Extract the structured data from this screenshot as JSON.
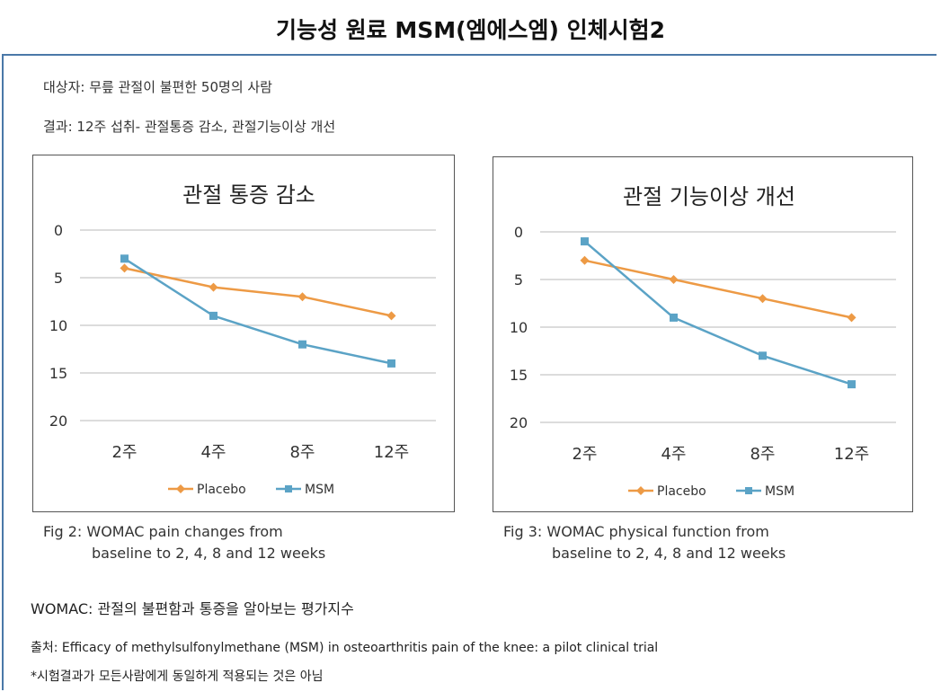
{
  "page": {
    "title": "기능성 원료 MSM(엠에스엠) 인체시험2",
    "subject_line": "대상자: 무릎 관절이 불편한 50명의 사람",
    "result_line": "결과: 12주 섭취- 관절통증 감소, 관절기능이상 개선",
    "womac_note": "WOMAC: 관절의 불편함과 통증을 알아보는 평가지수",
    "source_line": "출처: Efficacy of methylsulfonylmethane (MSM) in osteoarthritis pain of the knee: a pilot clinical trial",
    "disclaimer": "*시험결과가 모든사람에게 동일하게 적용되는 것은 아님"
  },
  "captions": [
    {
      "line1": "Fig 2: WOMAC pain changes from",
      "line2": "baseline to 2, 4, 8 and 12 weeks"
    },
    {
      "line1": "Fig 3: WOMAC physical function from",
      "line2": "baseline to 2, 4, 8 and 12 weeks"
    }
  ],
  "chart_data": [
    {
      "type": "line",
      "title": "관절 통증 감소",
      "categories": [
        "2주",
        "4주",
        "8주",
        "12주"
      ],
      "y_ticks": [
        "0",
        "5",
        "10",
        "15",
        "20"
      ],
      "ylim": [
        0,
        20
      ],
      "y_inverted": true,
      "grid": true,
      "legend": "bottom",
      "series": [
        {
          "name": "Placebo",
          "values": [
            4,
            6,
            7,
            9
          ],
          "color": "#ED9A45",
          "marker": "diamond"
        },
        {
          "name": "MSM",
          "values": [
            3,
            9,
            12,
            14
          ],
          "color": "#5BA3C6",
          "marker": "square"
        }
      ]
    },
    {
      "type": "line",
      "title": "관절 기능이상 개선",
      "categories": [
        "2주",
        "4주",
        "8주",
        "12주"
      ],
      "y_ticks": [
        "0",
        "5",
        "10",
        "15",
        "20"
      ],
      "ylim": [
        0,
        20
      ],
      "y_inverted": true,
      "grid": true,
      "legend": "bottom",
      "series": [
        {
          "name": "Placebo",
          "values": [
            3,
            5,
            7,
            9
          ],
          "color": "#ED9A45",
          "marker": "diamond"
        },
        {
          "name": "MSM",
          "values": [
            1,
            9,
            13,
            16
          ],
          "color": "#5BA3C6",
          "marker": "square"
        }
      ]
    }
  ]
}
